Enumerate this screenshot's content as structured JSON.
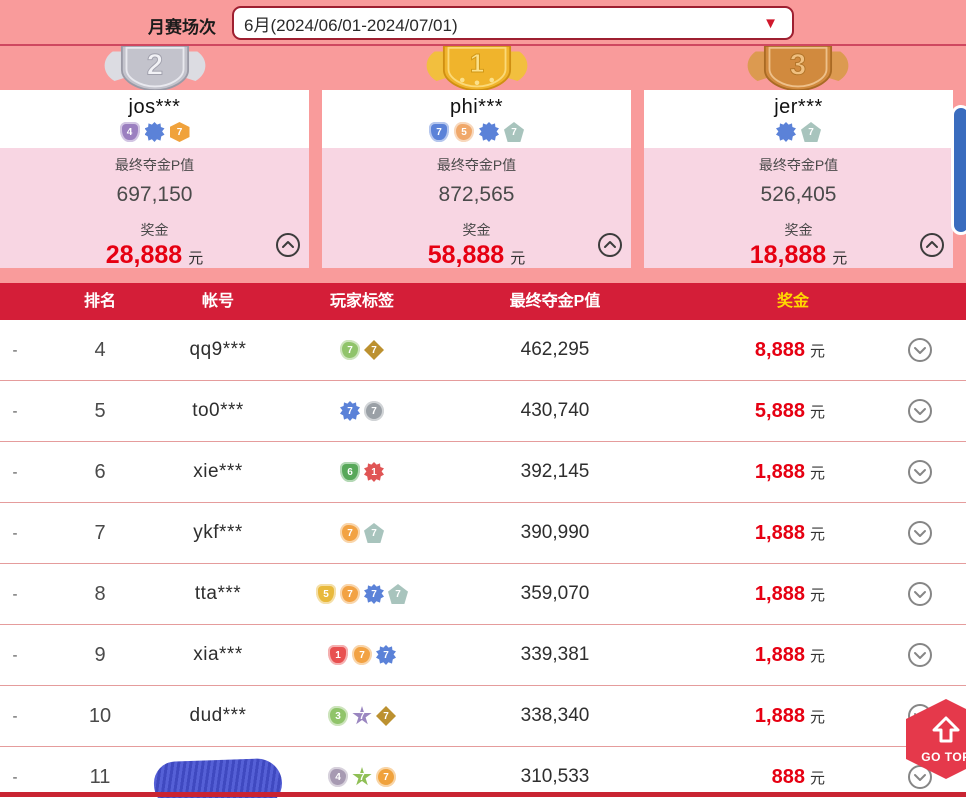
{
  "filter": {
    "label": "月赛场次",
    "value": "6月(2024/06/01-2024/07/01)",
    "dropdown_arrow": "▼"
  },
  "podium": [
    {
      "medal": "silver",
      "medal_number": "2",
      "name": "jos***",
      "badges": [
        {
          "shape": "trophy",
          "color": "#9b7fc0",
          "num": "4"
        },
        {
          "shape": "rosette",
          "color": "#5b82d8",
          "num": ""
        },
        {
          "shape": "hexagon",
          "color": "#f0a23c",
          "num": "7"
        }
      ],
      "p_label": "最终夺金P值",
      "p_value": "697,150",
      "prize_label": "奖金",
      "prize": "28,888",
      "unit": "元"
    },
    {
      "medal": "gold",
      "medal_number": "1",
      "name": "phi***",
      "badges": [
        {
          "shape": "trophy",
          "color": "#5b82d8",
          "num": "7"
        },
        {
          "shape": "bag",
          "color": "#f0a86a",
          "num": "5"
        },
        {
          "shape": "rosette",
          "color": "#5b82d8",
          "num": ""
        },
        {
          "shape": "pentagon",
          "color": "#a8c4bd",
          "num": "7"
        }
      ],
      "p_label": "最终夺金P值",
      "p_value": "872,565",
      "prize_label": "奖金",
      "prize": "58,888",
      "unit": "元"
    },
    {
      "medal": "bronze",
      "medal_number": "3",
      "name": "jer***",
      "badges": [
        {
          "shape": "rosette",
          "color": "#5b82d8",
          "num": ""
        },
        {
          "shape": "pentagon",
          "color": "#a8c4bd",
          "num": "7"
        }
      ],
      "p_label": "最终夺金P值",
      "p_value": "526,405",
      "prize_label": "奖金",
      "prize": "18,888",
      "unit": "元"
    }
  ],
  "table": {
    "headers": [
      "排名",
      "帐号",
      "玩家标签",
      "最终夺金P值",
      "奖金"
    ],
    "rows": [
      {
        "dash": "-",
        "rank": "4",
        "account": "qq9***",
        "censored": false,
        "badges": [
          {
            "shape": "bag",
            "color": "#90c46a",
            "num": "7"
          },
          {
            "shape": "diamond",
            "color": "#bc9130",
            "num": "7"
          }
        ],
        "p_value": "462,295",
        "prize": "8,888",
        "unit": "元"
      },
      {
        "dash": "-",
        "rank": "5",
        "account": "to0***",
        "censored": false,
        "badges": [
          {
            "shape": "rosette",
            "color": "#5b82d8",
            "num": "7"
          },
          {
            "shape": "circle",
            "color": "#9aa0a6",
            "num": "7"
          }
        ],
        "p_value": "430,740",
        "prize": "5,888",
        "unit": "元"
      },
      {
        "dash": "-",
        "rank": "6",
        "account": "xie***",
        "censored": false,
        "badges": [
          {
            "shape": "trophy",
            "color": "#58a85a",
            "num": "6"
          },
          {
            "shape": "rosette",
            "color": "#e05555",
            "num": "1"
          }
        ],
        "p_value": "392,145",
        "prize": "1,888",
        "unit": "元"
      },
      {
        "dash": "-",
        "rank": "7",
        "account": "ykf***",
        "censored": false,
        "badges": [
          {
            "shape": "bag",
            "color": "#f2a243",
            "num": "7"
          },
          {
            "shape": "pentagon",
            "color": "#a8c4bd",
            "num": "7"
          }
        ],
        "p_value": "390,990",
        "prize": "1,888",
        "unit": "元"
      },
      {
        "dash": "-",
        "rank": "8",
        "account": "tta***",
        "censored": false,
        "badges": [
          {
            "shape": "trophy",
            "color": "#e8b93c",
            "num": "5"
          },
          {
            "shape": "bag",
            "color": "#f2a243",
            "num": "7"
          },
          {
            "shape": "rosette",
            "color": "#5b82d8",
            "num": "7"
          },
          {
            "shape": "pentagon",
            "color": "#a8c4bd",
            "num": "7"
          }
        ],
        "p_value": "359,070",
        "prize": "1,888",
        "unit": "元"
      },
      {
        "dash": "-",
        "rank": "9",
        "account": "xia***",
        "censored": false,
        "badges": [
          {
            "shape": "trophy",
            "color": "#e85050",
            "num": "1"
          },
          {
            "shape": "bag",
            "color": "#f2a243",
            "num": "7"
          },
          {
            "shape": "rosette",
            "color": "#5b82d8",
            "num": "7"
          }
        ],
        "p_value": "339,381",
        "prize": "1,888",
        "unit": "元"
      },
      {
        "dash": "-",
        "rank": "10",
        "account": "dud***",
        "censored": false,
        "badges": [
          {
            "shape": "bag",
            "color": "#90c46a",
            "num": "3"
          },
          {
            "shape": "star",
            "color": "#9a86c0",
            "num": "7"
          },
          {
            "shape": "diamond",
            "color": "#bc9130",
            "num": "7"
          }
        ],
        "p_value": "338,340",
        "prize": "1,888",
        "unit": "元"
      },
      {
        "dash": "-",
        "rank": "11",
        "account": "",
        "censored": true,
        "badges": [
          {
            "shape": "bag",
            "color": "#a79ab2",
            "num": "4"
          },
          {
            "shape": "star",
            "color": "#8fbf55",
            "num": "7"
          },
          {
            "shape": "circle",
            "color": "#f0a23c",
            "num": "7"
          }
        ],
        "p_value": "310,533",
        "prize": "888",
        "unit": "元"
      }
    ]
  },
  "go_top": {
    "label": "GO TOP"
  },
  "colors": {
    "background_salmon": "#f99b9b",
    "card_pink": "#f8d6e3",
    "header_red": "#d41e38",
    "prize_red": "#e60012",
    "header_gold": "#ffd800",
    "scrollbar_blue": "#3a6cbe",
    "go_top_red": "#e5394b",
    "select_border": "#9e1f30",
    "row_separator": "#e59c9c"
  }
}
